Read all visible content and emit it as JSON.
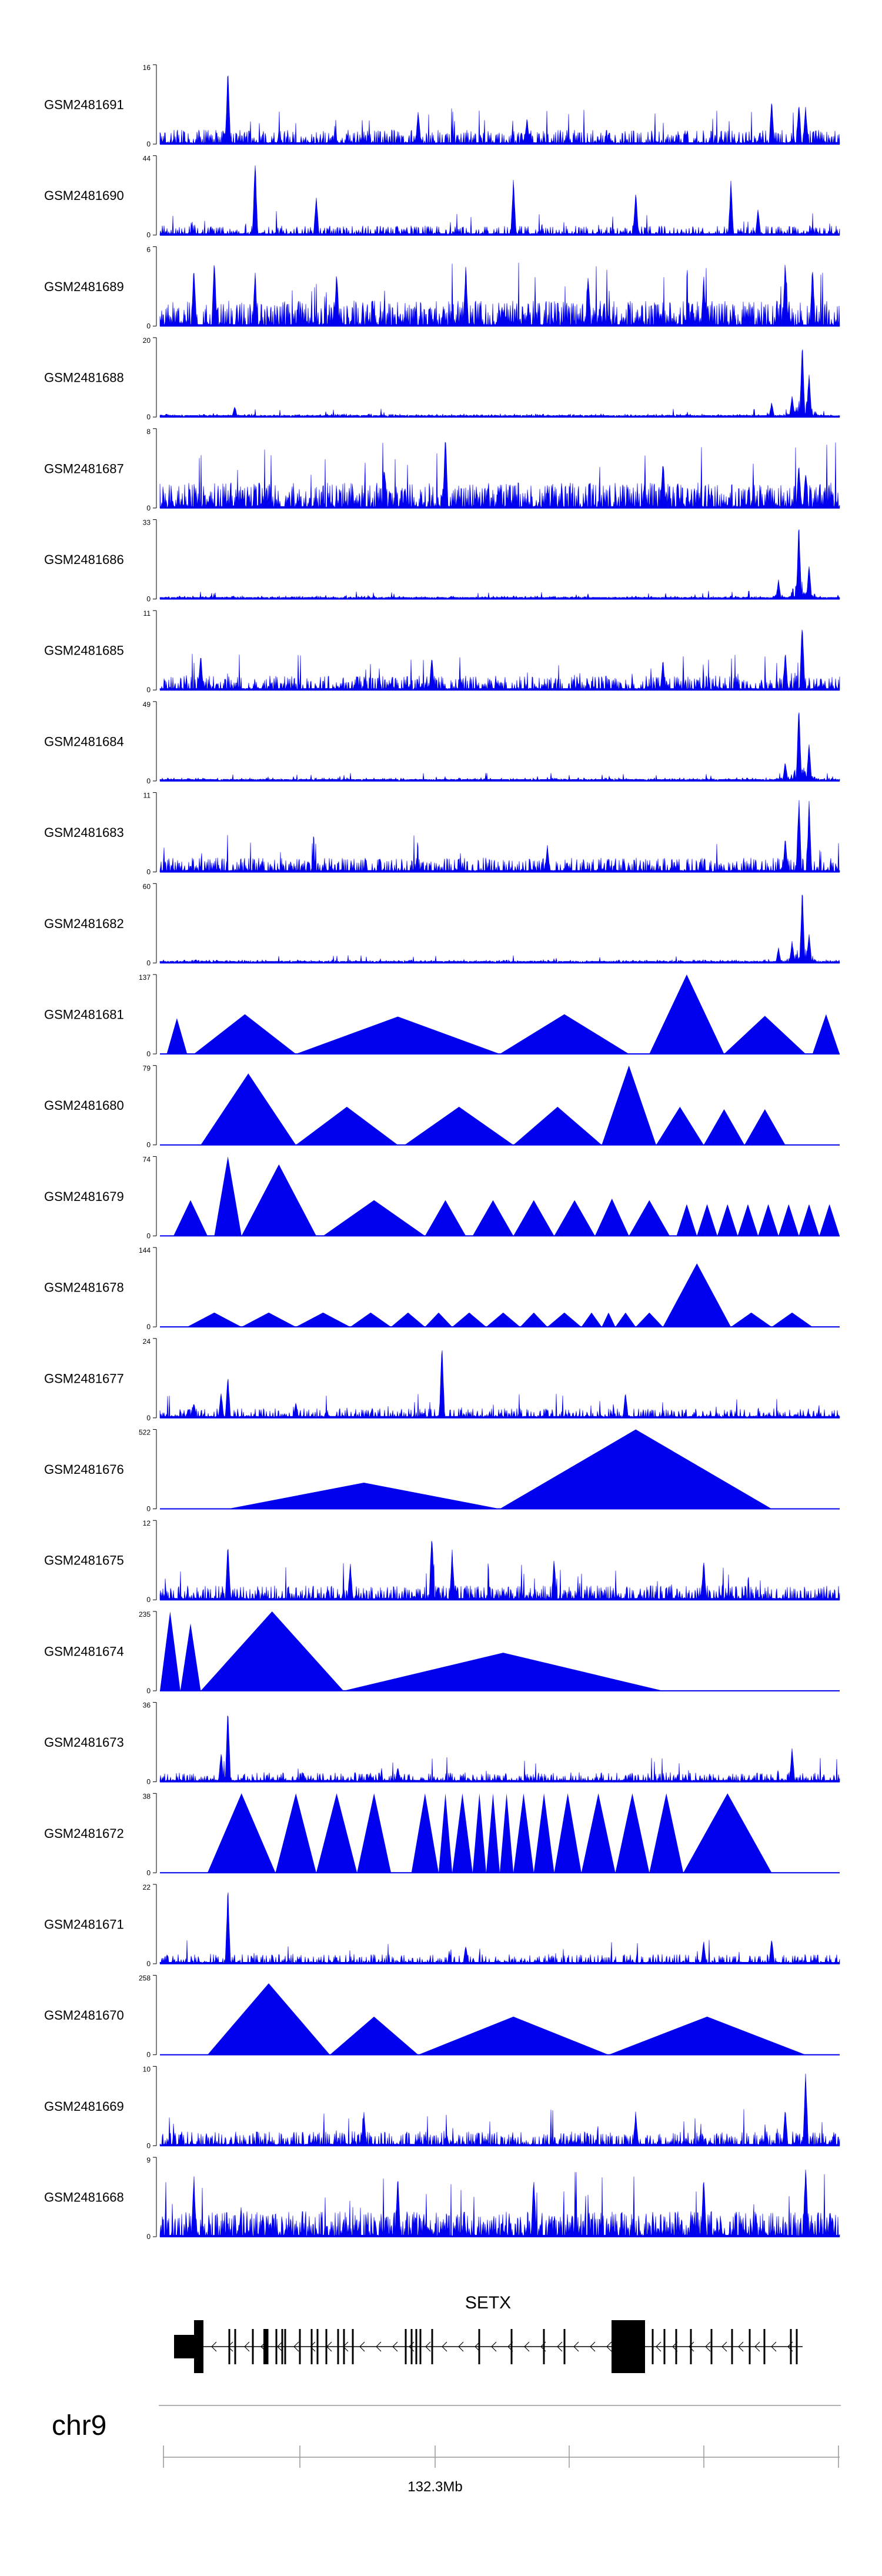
{
  "colors": {
    "signal": "#0000ee",
    "axis": "#000000",
    "ruler": "#999999"
  },
  "chart_data": {
    "type": "area",
    "title": "",
    "chromosome": "chr9",
    "position_tick_label": "132.3Mb",
    "tracks": [
      {
        "name": "GSM2481691",
        "ymax": "16",
        "ymin": "0",
        "style": "dense",
        "peaks": [
          [
            0.1,
            1.0
          ],
          [
            0.38,
            0.45
          ],
          [
            0.54,
            0.35
          ],
          [
            0.9,
            0.6
          ],
          [
            0.94,
            0.55
          ],
          [
            0.95,
            0.5
          ]
        ]
      },
      {
        "name": "GSM2481690",
        "ymax": "44",
        "ymin": "0",
        "style": "sparse-dense",
        "peaks": [
          [
            0.14,
            1.0
          ],
          [
            0.23,
            0.55
          ],
          [
            0.52,
            0.75
          ],
          [
            0.7,
            0.6
          ],
          [
            0.84,
            0.7
          ],
          [
            0.88,
            0.35
          ]
        ]
      },
      {
        "name": "GSM2481689",
        "ymax": "6",
        "ymin": "0",
        "style": "very-dense",
        "peaks": [
          [
            0.05,
            0.8
          ],
          [
            0.08,
            0.9
          ],
          [
            0.14,
            0.7
          ],
          [
            0.26,
            0.75
          ],
          [
            0.45,
            0.8
          ],
          [
            0.63,
            0.7
          ],
          [
            0.8,
            0.65
          ],
          [
            0.92,
            0.9
          ],
          [
            0.96,
            0.8
          ]
        ]
      },
      {
        "name": "GSM2481688",
        "ymax": "20",
        "ymin": "0",
        "style": "low-with-peak",
        "peaks": [
          [
            0.11,
            0.15
          ],
          [
            0.9,
            0.2
          ],
          [
            0.93,
            0.3
          ],
          [
            0.945,
            1.0
          ],
          [
            0.955,
            0.6
          ]
        ]
      },
      {
        "name": "GSM2481687",
        "ymax": "8",
        "ymin": "0",
        "style": "very-dense",
        "peaks": [
          [
            0.42,
            1.0
          ],
          [
            0.33,
            0.55
          ],
          [
            0.74,
            0.6
          ],
          [
            0.94,
            0.6
          ],
          [
            0.95,
            0.5
          ]
        ]
      },
      {
        "name": "GSM2481686",
        "ymax": "33",
        "ymin": "0",
        "style": "low-with-peak",
        "peaks": [
          [
            0.91,
            0.25
          ],
          [
            0.94,
            1.0
          ],
          [
            0.955,
            0.45
          ]
        ]
      },
      {
        "name": "GSM2481685",
        "ymax": "11",
        "ymin": "0",
        "style": "dense",
        "peaks": [
          [
            0.06,
            0.5
          ],
          [
            0.4,
            0.45
          ],
          [
            0.74,
            0.4
          ],
          [
            0.92,
            0.5
          ],
          [
            0.945,
            0.95
          ]
        ]
      },
      {
        "name": "GSM2481684",
        "ymax": "49",
        "ymin": "0",
        "style": "low-with-peak",
        "peaks": [
          [
            0.92,
            0.25
          ],
          [
            0.94,
            1.0
          ],
          [
            0.955,
            0.5
          ]
        ]
      },
      {
        "name": "GSM2481683",
        "ymax": "11",
        "ymin": "0",
        "style": "dense",
        "peaks": [
          [
            0.57,
            0.35
          ],
          [
            0.92,
            0.45
          ],
          [
            0.94,
            1.0
          ],
          [
            0.955,
            0.9
          ]
        ]
      },
      {
        "name": "GSM2481682",
        "ymax": "60",
        "ymin": "0",
        "style": "low-with-peak",
        "peaks": [
          [
            0.91,
            0.2
          ],
          [
            0.93,
            0.3
          ],
          [
            0.945,
            1.0
          ],
          [
            0.955,
            0.4
          ]
        ]
      },
      {
        "name": "GSM2481681",
        "ymax": "137",
        "ymin": "0",
        "style": "triangles",
        "segments": [
          [
            0.01,
            0.45,
            0.04
          ],
          [
            0.05,
            0.5,
            0.2
          ],
          [
            0.2,
            0.47,
            0.5
          ],
          [
            0.5,
            0.5,
            0.69
          ],
          [
            0.72,
            1.0,
            0.83
          ],
          [
            0.83,
            0.48,
            0.95
          ],
          [
            0.96,
            0.5,
            1.0
          ]
        ]
      },
      {
        "name": "GSM2481680",
        "ymax": "79",
        "ymin": "0",
        "style": "triangles",
        "segments": [
          [
            0.06,
            0.9,
            0.2
          ],
          [
            0.2,
            0.48,
            0.35
          ],
          [
            0.36,
            0.48,
            0.52
          ],
          [
            0.52,
            0.48,
            0.65
          ],
          [
            0.65,
            1.0,
            0.73
          ],
          [
            0.73,
            0.48,
            0.8
          ],
          [
            0.8,
            0.45,
            0.86
          ],
          [
            0.86,
            0.45,
            0.92
          ]
        ]
      },
      {
        "name": "GSM2481679",
        "ymax": "74",
        "ymin": "0",
        "style": "triangles",
        "segments": [
          [
            0.02,
            0.45,
            0.07
          ],
          [
            0.08,
            1.0,
            0.12
          ],
          [
            0.12,
            0.9,
            0.23
          ],
          [
            0.24,
            0.45,
            0.39
          ],
          [
            0.39,
            0.45,
            0.45
          ],
          [
            0.46,
            0.45,
            0.52
          ],
          [
            0.52,
            0.45,
            0.58
          ],
          [
            0.58,
            0.45,
            0.64
          ],
          [
            0.64,
            0.47,
            0.69
          ],
          [
            0.69,
            0.45,
            0.75
          ],
          [
            0.76,
            0.4,
            0.79
          ],
          [
            0.79,
            0.4,
            0.82
          ],
          [
            0.82,
            0.4,
            0.85
          ],
          [
            0.85,
            0.4,
            0.88
          ],
          [
            0.88,
            0.4,
            0.91
          ],
          [
            0.91,
            0.4,
            0.94
          ],
          [
            0.94,
            0.4,
            0.97
          ],
          [
            0.97,
            0.4,
            1.0
          ]
        ]
      },
      {
        "name": "GSM2481678",
        "ymax": "144",
        "ymin": "0",
        "style": "triangles",
        "segments": [
          [
            0.04,
            0.18,
            0.12
          ],
          [
            0.12,
            0.18,
            0.2
          ],
          [
            0.2,
            0.18,
            0.28
          ],
          [
            0.28,
            0.18,
            0.34
          ],
          [
            0.34,
            0.18,
            0.39
          ],
          [
            0.39,
            0.18,
            0.43
          ],
          [
            0.43,
            0.18,
            0.48
          ],
          [
            0.48,
            0.18,
            0.53
          ],
          [
            0.53,
            0.18,
            0.57
          ],
          [
            0.57,
            0.18,
            0.62
          ],
          [
            0.62,
            0.18,
            0.65
          ],
          [
            0.65,
            0.18,
            0.67
          ],
          [
            0.67,
            0.18,
            0.7
          ],
          [
            0.7,
            0.18,
            0.74
          ],
          [
            0.74,
            0.8,
            0.84
          ],
          [
            0.84,
            0.18,
            0.9
          ],
          [
            0.9,
            0.18,
            0.96
          ]
        ]
      },
      {
        "name": "GSM2481677",
        "ymax": "24",
        "ymin": "0",
        "style": "sparse-dense",
        "peaks": [
          [
            0.09,
            0.35
          ],
          [
            0.1,
            0.55
          ],
          [
            0.415,
            1.0
          ],
          [
            0.685,
            0.35
          ],
          [
            0.05,
            0.2
          ],
          [
            0.2,
            0.2
          ]
        ]
      },
      {
        "name": "GSM2481676",
        "ymax": "522",
        "ymin": "0",
        "style": "triangles",
        "segments": [
          [
            0.1,
            0.33,
            0.5
          ],
          [
            0.5,
            1.0,
            0.9
          ]
        ]
      },
      {
        "name": "GSM2481675",
        "ymax": "12",
        "ymin": "0",
        "style": "dense",
        "peaks": [
          [
            0.1,
            0.75
          ],
          [
            0.4,
            0.95
          ],
          [
            0.43,
            0.65
          ],
          [
            0.28,
            0.5
          ],
          [
            0.58,
            0.55
          ],
          [
            0.8,
            0.55
          ]
        ]
      },
      {
        "name": "GSM2481674",
        "ymax": "235",
        "ymin": "0",
        "style": "triangles",
        "segments": [
          [
            0.0,
            1.0,
            0.03
          ],
          [
            0.03,
            0.85,
            0.06
          ],
          [
            0.06,
            1.0,
            0.27
          ],
          [
            0.27,
            0.48,
            0.74
          ]
        ]
      },
      {
        "name": "GSM2481673",
        "ymax": "36",
        "ymin": "0",
        "style": "sparse-dense",
        "peaks": [
          [
            0.1,
            1.0
          ],
          [
            0.09,
            0.4
          ],
          [
            0.35,
            0.2
          ],
          [
            0.93,
            0.45
          ]
        ]
      },
      {
        "name": "GSM2481672",
        "ymax": "38",
        "ymin": "0",
        "style": "triangles",
        "segments": [
          [
            0.07,
            1.0,
            0.17
          ],
          [
            0.17,
            1.0,
            0.23
          ],
          [
            0.23,
            1.0,
            0.29
          ],
          [
            0.29,
            1.0,
            0.34
          ],
          [
            0.37,
            1.0,
            0.41
          ],
          [
            0.41,
            1.0,
            0.43
          ],
          [
            0.43,
            1.0,
            0.46
          ],
          [
            0.46,
            1.0,
            0.48
          ],
          [
            0.48,
            1.0,
            0.5
          ],
          [
            0.5,
            1.0,
            0.52
          ],
          [
            0.52,
            1.0,
            0.55
          ],
          [
            0.55,
            1.0,
            0.58
          ],
          [
            0.58,
            1.0,
            0.62
          ],
          [
            0.62,
            1.0,
            0.67
          ],
          [
            0.67,
            1.0,
            0.72
          ],
          [
            0.72,
            1.0,
            0.77
          ],
          [
            0.77,
            1.0,
            0.9
          ]
        ]
      },
      {
        "name": "GSM2481671",
        "ymax": "22",
        "ymin": "0",
        "style": "sparse-dense",
        "peaks": [
          [
            0.1,
            1.0
          ],
          [
            0.9,
            0.35
          ],
          [
            0.45,
            0.25
          ],
          [
            0.8,
            0.3
          ]
        ]
      },
      {
        "name": "GSM2481670",
        "ymax": "258",
        "ymin": "0",
        "style": "triangles",
        "segments": [
          [
            0.07,
            0.9,
            0.25
          ],
          [
            0.25,
            0.48,
            0.38
          ],
          [
            0.38,
            0.48,
            0.66
          ],
          [
            0.66,
            0.48,
            0.95
          ]
        ]
      },
      {
        "name": "GSM2481669",
        "ymax": "10",
        "ymin": "0",
        "style": "dense",
        "peaks": [
          [
            0.95,
            1.0
          ],
          [
            0.92,
            0.5
          ],
          [
            0.3,
            0.45
          ],
          [
            0.7,
            0.45
          ]
        ]
      },
      {
        "name": "GSM2481668",
        "ymax": "9",
        "ymin": "0",
        "style": "very-dense",
        "peaks": [
          [
            0.95,
            1.0
          ],
          [
            0.05,
            0.8
          ],
          [
            0.35,
            0.8
          ],
          [
            0.55,
            0.8
          ],
          [
            0.8,
            0.8
          ]
        ]
      }
    ],
    "gene": {
      "name": "SETX",
      "strand": "-"
    }
  }
}
